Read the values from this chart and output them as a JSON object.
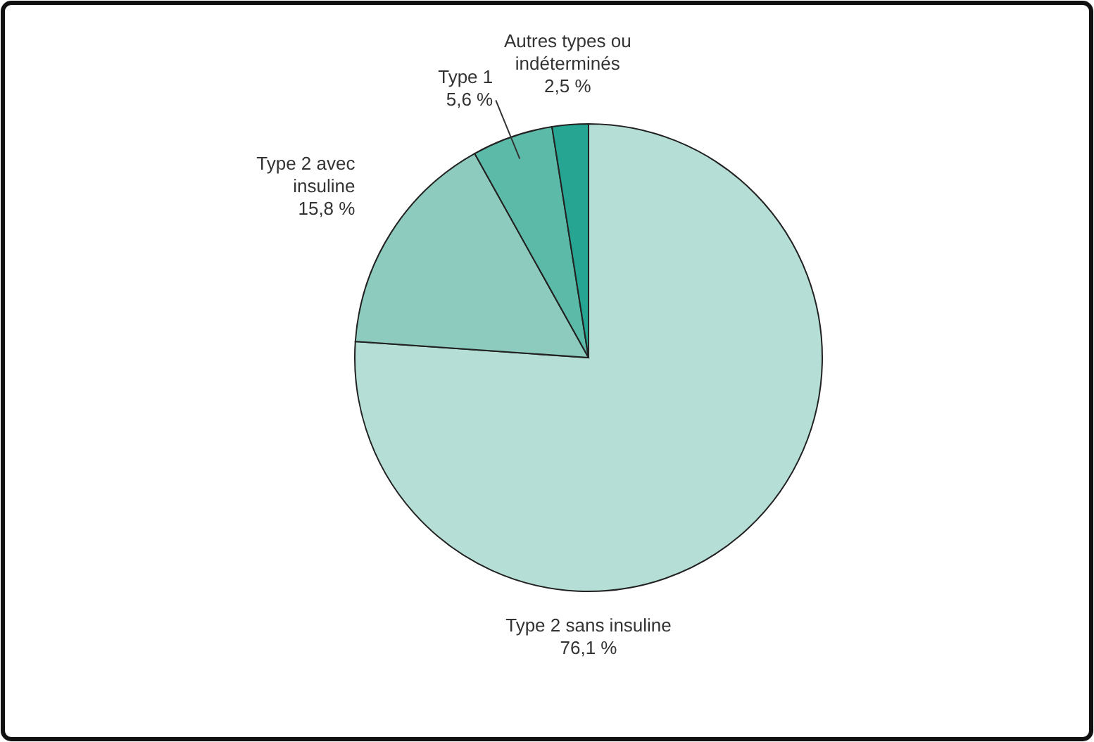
{
  "chart_data": {
    "type": "pie",
    "categories": [
      "Type 2 sans insuline",
      "Type 2 avec insuline",
      "Type 1",
      "Autres types ou indéterminés"
    ],
    "values": [
      76.1,
      15.8,
      5.6,
      2.5
    ],
    "value_labels": [
      "76,1 %",
      "15,8 %",
      "5,6 %",
      "2,5 %"
    ],
    "colors": [
      "#b5ded6",
      "#8ccbbd",
      "#5cbaa9",
      "#26a592"
    ]
  }
}
